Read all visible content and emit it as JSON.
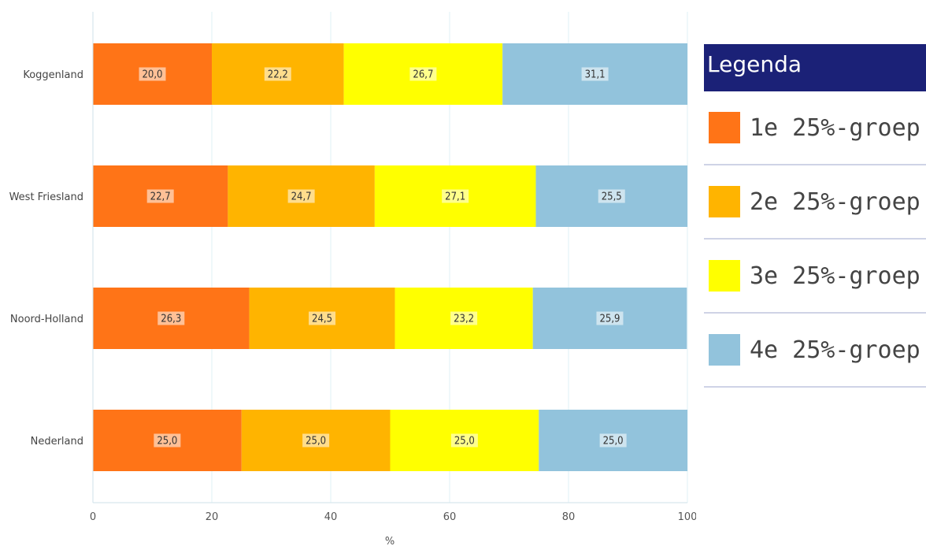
{
  "chart_data": {
    "type": "bar",
    "orientation": "horizontal",
    "stacked": true,
    "categories": [
      "Koggenland",
      "West Friesland",
      "Noord-Holland",
      "Nederland"
    ],
    "series": [
      {
        "name": "1e 25%-groep",
        "color": "#ff7417",
        "values": [
          20.0,
          22.7,
          26.3,
          25.0
        ]
      },
      {
        "name": "2e 25%-groep",
        "color": "#ffb400",
        "values": [
          22.2,
          24.7,
          24.5,
          25.0
        ]
      },
      {
        "name": "3e 25%-groep",
        "color": "#ffff00",
        "values": [
          26.7,
          27.1,
          23.2,
          25.0
        ]
      },
      {
        "name": "4e 25%-groep",
        "color": "#92c3dc",
        "values": [
          31.1,
          25.5,
          25.9,
          25.0
        ]
      }
    ],
    "data_labels": [
      [
        "20,0",
        "22,2",
        "26,7",
        "31,1"
      ],
      [
        "22,7",
        "24,7",
        "27,1",
        "25,5"
      ],
      [
        "26,3",
        "24,5",
        "23,2",
        "25,9"
      ],
      [
        "25,0",
        "25,0",
        "25,0",
        "25,0"
      ]
    ],
    "xlabel": "%",
    "xlim": [
      0,
      100
    ],
    "xticks": [
      "0",
      "20",
      "40",
      "60",
      "80",
      "100"
    ],
    "grid": true,
    "legend": {
      "title": "Legenda",
      "position": "right"
    }
  }
}
